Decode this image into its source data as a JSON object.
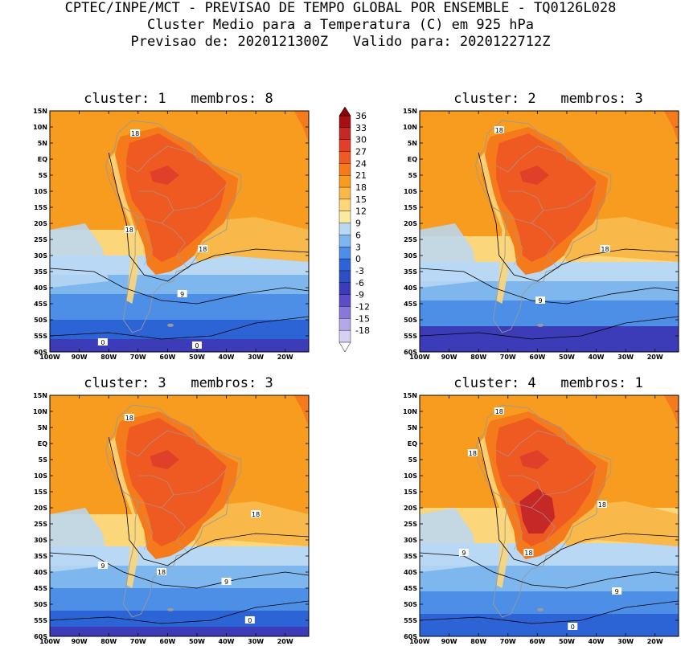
{
  "header": {
    "line1": "CPTEC/INPE/MCT - PREVISAO DE TEMPO GLOBAL POR ENSEMBLE - TQ0126L028",
    "line2": "Cluster Medio para a Temperatura (C) em 925 hPa",
    "line3": "Previsao de: 2020121300Z   Valido para: 2020122712Z"
  },
  "axes": {
    "lat_labels": [
      "15N",
      "10N",
      "5N",
      "EQ",
      "5S",
      "10S",
      "15S",
      "20S",
      "25S",
      "30S",
      "35S",
      "40S",
      "45S",
      "50S",
      "55S",
      "60S"
    ],
    "lon_labels": [
      "100W",
      "90W",
      "80W",
      "70W",
      "60W",
      "50W",
      "40W",
      "30W",
      "20W"
    ]
  },
  "colorbar": {
    "labels": [
      "36",
      "33",
      "30",
      "27",
      "24",
      "21",
      "18",
      "15",
      "12",
      "9",
      "6",
      "3",
      "0",
      "-3",
      "-6",
      "-9",
      "-12",
      "-15",
      "-18"
    ],
    "colors": [
      "#a50f15",
      "#c62828",
      "#e0402a",
      "#ee5a22",
      "#f47a1c",
      "#f79c1e",
      "#f8b84a",
      "#fcd67a",
      "#fbe9a0",
      "#b8d8f4",
      "#7eb6ee",
      "#4d8ee6",
      "#2c64d6",
      "#2e4fc2",
      "#3c3cb8",
      "#5c4cc8",
      "#8a78d8",
      "#b4a8e6",
      "#d8d0f2"
    ]
  },
  "panels": [
    {
      "title": "cluster: 1   membros: 8",
      "contour_labels": [
        "18",
        "18",
        "18",
        "9",
        "0",
        "0"
      ]
    },
    {
      "title": "cluster: 2   membros: 3",
      "contour_labels": [
        "18",
        "18",
        "9"
      ]
    },
    {
      "title": "cluster: 3   membros: 3",
      "contour_labels": [
        "18",
        "18",
        "18",
        "9",
        "9",
        "0"
      ]
    },
    {
      "title": "cluster: 4   membros: 1",
      "contour_labels": [
        "18",
        "18",
        "18",
        "18",
        "9",
        "9",
        "0"
      ]
    }
  ]
}
